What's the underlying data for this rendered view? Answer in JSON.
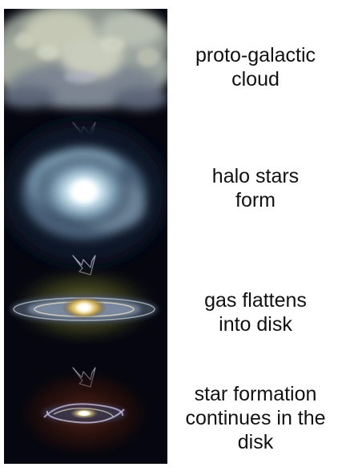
{
  "stages": [
    {
      "lines": [
        "proto-galactic",
        "cloud"
      ]
    },
    {
      "lines": [
        "halo stars",
        "form"
      ]
    },
    {
      "lines": [
        "gas flattens",
        "into disk"
      ]
    },
    {
      "lines": [
        "star formation",
        "continues in the",
        "disk"
      ]
    }
  ],
  "icons": [
    "cloud-illustration",
    "arrow-down-icon",
    "halo-illustration",
    "arrow-down-icon",
    "flattening-disk-illustration",
    "arrow-down-icon",
    "spiral-galaxy-illustration"
  ],
  "colors": {
    "background": "#05060f",
    "cloud": "#b8bfb2",
    "halo": "#d8eef8",
    "disk_core": "#fff7c0",
    "text": "#111111"
  }
}
